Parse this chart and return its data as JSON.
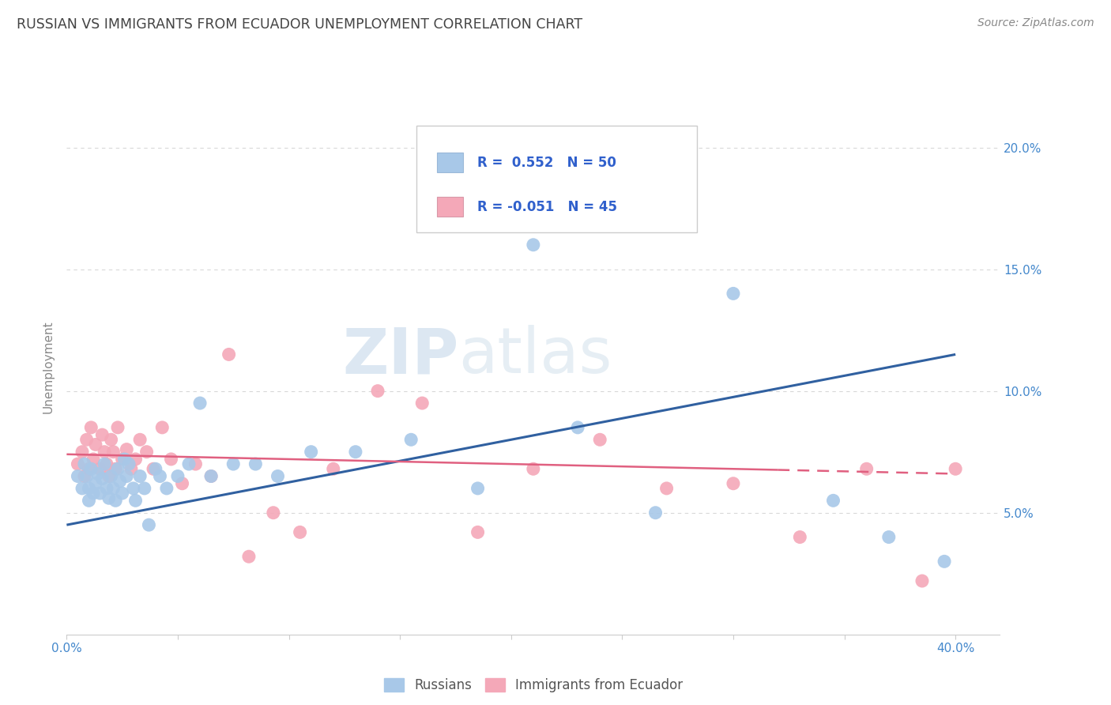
{
  "title": "RUSSIAN VS IMMIGRANTS FROM ECUADOR UNEMPLOYMENT CORRELATION CHART",
  "source": "Source: ZipAtlas.com",
  "ylabel": "Unemployment",
  "xlim": [
    0.0,
    0.42
  ],
  "ylim": [
    0.0,
    0.22
  ],
  "xtick_positions": [
    0.0,
    0.05,
    0.1,
    0.15,
    0.2,
    0.25,
    0.3,
    0.35,
    0.4
  ],
  "xtick_labels": [
    "0.0%",
    "",
    "",
    "",
    "",
    "",
    "",
    "",
    "40.0%"
  ],
  "ytick_positions": [
    0.05,
    0.1,
    0.15,
    0.2
  ],
  "ytick_labels": [
    "5.0%",
    "10.0%",
    "15.0%",
    "20.0%"
  ],
  "background_color": "#ffffff",
  "grid_color": "#d8d8d8",
  "watermark_zip": "ZIP",
  "watermark_atlas": "atlas",
  "legend_r1": "R =  0.552",
  "legend_n1": "N = 50",
  "legend_r2": "R = -0.051",
  "legend_n2": "N = 45",
  "blue_scatter_color": "#a8c8e8",
  "pink_scatter_color": "#f4a8b8",
  "blue_line_color": "#3060a0",
  "pink_line_color": "#e06080",
  "legend_text_color": "#3060cc",
  "tick_color": "#4488cc",
  "title_color": "#444444",
  "source_color": "#888888",
  "ylabel_color": "#888888",
  "russians_x": [
    0.005,
    0.007,
    0.008,
    0.009,
    0.01,
    0.01,
    0.011,
    0.012,
    0.013,
    0.014,
    0.015,
    0.016,
    0.017,
    0.018,
    0.019,
    0.02,
    0.021,
    0.022,
    0.023,
    0.024,
    0.025,
    0.026,
    0.027,
    0.028,
    0.03,
    0.031,
    0.033,
    0.035,
    0.037,
    0.04,
    0.042,
    0.045,
    0.05,
    0.055,
    0.06,
    0.065,
    0.075,
    0.085,
    0.095,
    0.11,
    0.13,
    0.155,
    0.185,
    0.21,
    0.23,
    0.265,
    0.3,
    0.345,
    0.37,
    0.395
  ],
  "russians_y": [
    0.065,
    0.06,
    0.07,
    0.065,
    0.06,
    0.055,
    0.068,
    0.058,
    0.062,
    0.066,
    0.058,
    0.064,
    0.07,
    0.06,
    0.056,
    0.065,
    0.06,
    0.055,
    0.068,
    0.063,
    0.058,
    0.072,
    0.065,
    0.07,
    0.06,
    0.055,
    0.065,
    0.06,
    0.045,
    0.068,
    0.065,
    0.06,
    0.065,
    0.07,
    0.095,
    0.065,
    0.07,
    0.07,
    0.065,
    0.075,
    0.075,
    0.08,
    0.06,
    0.16,
    0.085,
    0.05,
    0.14,
    0.055,
    0.04,
    0.03
  ],
  "ecuador_x": [
    0.005,
    0.007,
    0.008,
    0.009,
    0.01,
    0.011,
    0.012,
    0.013,
    0.015,
    0.016,
    0.017,
    0.018,
    0.019,
    0.02,
    0.021,
    0.022,
    0.023,
    0.025,
    0.027,
    0.029,
    0.031,
    0.033,
    0.036,
    0.039,
    0.043,
    0.047,
    0.052,
    0.058,
    0.065,
    0.073,
    0.082,
    0.093,
    0.105,
    0.12,
    0.14,
    0.16,
    0.185,
    0.21,
    0.24,
    0.27,
    0.3,
    0.33,
    0.36,
    0.385,
    0.4
  ],
  "ecuador_y": [
    0.07,
    0.075,
    0.065,
    0.08,
    0.068,
    0.085,
    0.072,
    0.078,
    0.068,
    0.082,
    0.075,
    0.07,
    0.065,
    0.08,
    0.075,
    0.068,
    0.085,
    0.072,
    0.076,
    0.068,
    0.072,
    0.08,
    0.075,
    0.068,
    0.085,
    0.072,
    0.062,
    0.07,
    0.065,
    0.115,
    0.032,
    0.05,
    0.042,
    0.068,
    0.1,
    0.095,
    0.042,
    0.068,
    0.08,
    0.06,
    0.062,
    0.04,
    0.068,
    0.022,
    0.068
  ],
  "blue_trendline_x": [
    0.0,
    0.4
  ],
  "blue_trendline_y": [
    0.045,
    0.115
  ],
  "pink_trendline_x": [
    0.0,
    0.4
  ],
  "pink_trendline_y": [
    0.074,
    0.066
  ]
}
